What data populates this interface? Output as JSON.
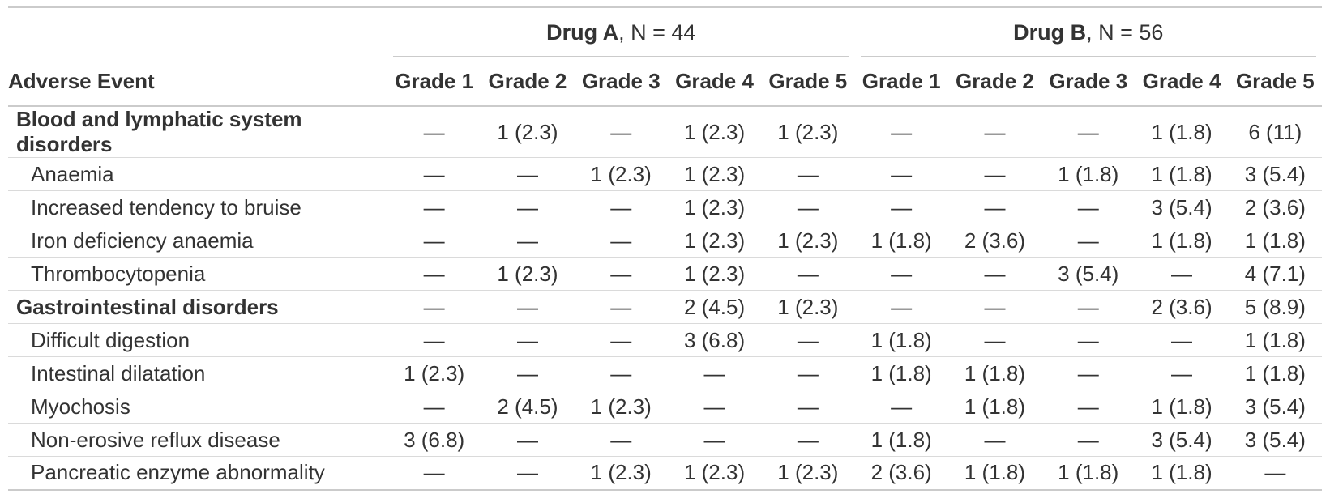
{
  "colors": {
    "text": "#333333",
    "rule_heavy": "#cbcbcb",
    "rule_light": "#dadada",
    "background": "#ffffff"
  },
  "table": {
    "stub_header": "Adverse Event",
    "spanners": [
      {
        "drug": "Drug A",
        "rest": ", N = 44"
      },
      {
        "drug": "Drug B",
        "rest": ", N = 56"
      }
    ],
    "grade_headers": [
      "Grade 1",
      "Grade 2",
      "Grade 3",
      "Grade 4",
      "Grade 5"
    ],
    "rows": [
      {
        "label": "Blood and lymphatic system disorders",
        "group": true,
        "drug_a": [
          "—",
          "1 (2.3)",
          "—",
          "1 (2.3)",
          "1 (2.3)"
        ],
        "drug_b": [
          "—",
          "—",
          "—",
          "1 (1.8)",
          "6 (11)"
        ]
      },
      {
        "label": "Anaemia",
        "group": false,
        "drug_a": [
          "—",
          "—",
          "1 (2.3)",
          "1 (2.3)",
          "—"
        ],
        "drug_b": [
          "—",
          "—",
          "1 (1.8)",
          "1 (1.8)",
          "3 (5.4)"
        ]
      },
      {
        "label": "Increased tendency to bruise",
        "group": false,
        "drug_a": [
          "—",
          "—",
          "—",
          "1 (2.3)",
          "—"
        ],
        "drug_b": [
          "—",
          "—",
          "—",
          "3 (5.4)",
          "2 (3.6)"
        ]
      },
      {
        "label": "Iron deficiency anaemia",
        "group": false,
        "drug_a": [
          "—",
          "—",
          "—",
          "1 (2.3)",
          "1 (2.3)"
        ],
        "drug_b": [
          "1 (1.8)",
          "2 (3.6)",
          "—",
          "1 (1.8)",
          "1 (1.8)"
        ]
      },
      {
        "label": "Thrombocytopenia",
        "group": false,
        "drug_a": [
          "—",
          "1 (2.3)",
          "—",
          "1 (2.3)",
          "—"
        ],
        "drug_b": [
          "—",
          "—",
          "3 (5.4)",
          "—",
          "4 (7.1)"
        ]
      },
      {
        "label": "Gastrointestinal disorders",
        "group": true,
        "drug_a": [
          "—",
          "—",
          "—",
          "2 (4.5)",
          "1 (2.3)"
        ],
        "drug_b": [
          "—",
          "—",
          "—",
          "2 (3.6)",
          "5 (8.9)"
        ]
      },
      {
        "label": "Difficult digestion",
        "group": false,
        "drug_a": [
          "—",
          "—",
          "—",
          "3 (6.8)",
          "—"
        ],
        "drug_b": [
          "1 (1.8)",
          "—",
          "—",
          "—",
          "1 (1.8)"
        ]
      },
      {
        "label": "Intestinal dilatation",
        "group": false,
        "drug_a": [
          "1 (2.3)",
          "—",
          "—",
          "—",
          "—"
        ],
        "drug_b": [
          "1 (1.8)",
          "1 (1.8)",
          "—",
          "—",
          "1 (1.8)"
        ]
      },
      {
        "label": "Myochosis",
        "group": false,
        "drug_a": [
          "—",
          "2 (4.5)",
          "1 (2.3)",
          "—",
          "—"
        ],
        "drug_b": [
          "—",
          "1 (1.8)",
          "—",
          "1 (1.8)",
          "3 (5.4)"
        ]
      },
      {
        "label": "Non-erosive reflux disease",
        "group": false,
        "drug_a": [
          "3 (6.8)",
          "—",
          "—",
          "—",
          "—"
        ],
        "drug_b": [
          "1 (1.8)",
          "—",
          "—",
          "3 (5.4)",
          "3 (5.4)"
        ]
      },
      {
        "label": "Pancreatic enzyme abnormality",
        "group": false,
        "drug_a": [
          "—",
          "—",
          "1 (2.3)",
          "1 (2.3)",
          "1 (2.3)"
        ],
        "drug_b": [
          "2 (3.6)",
          "1 (1.8)",
          "1 (1.8)",
          "1 (1.8)",
          "—"
        ]
      }
    ]
  }
}
